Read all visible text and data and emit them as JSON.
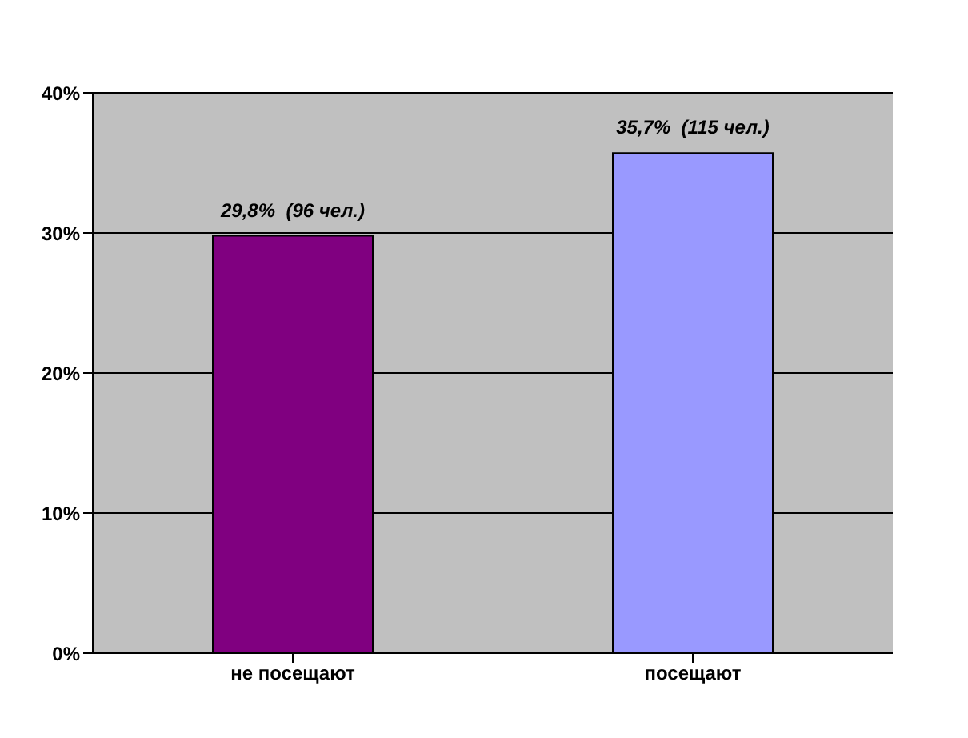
{
  "chart_data": {
    "type": "bar",
    "categories": [
      "не посещают",
      "посещают"
    ],
    "values": [
      29.8,
      35.7
    ],
    "colors": [
      "#800080",
      "#9999ff"
    ],
    "value_labels": [
      "29,8%  (96 чел.)",
      "35,7%  (115 чел.)"
    ],
    "ylim": [
      0,
      40
    ],
    "yticks": [
      {
        "value": 0,
        "label": "0%"
      },
      {
        "value": 10,
        "label": "10%"
      },
      {
        "value": 20,
        "label": "20%"
      },
      {
        "value": 30,
        "label": "30%"
      },
      {
        "value": 40,
        "label": "40%"
      }
    ],
    "grid": "y"
  }
}
